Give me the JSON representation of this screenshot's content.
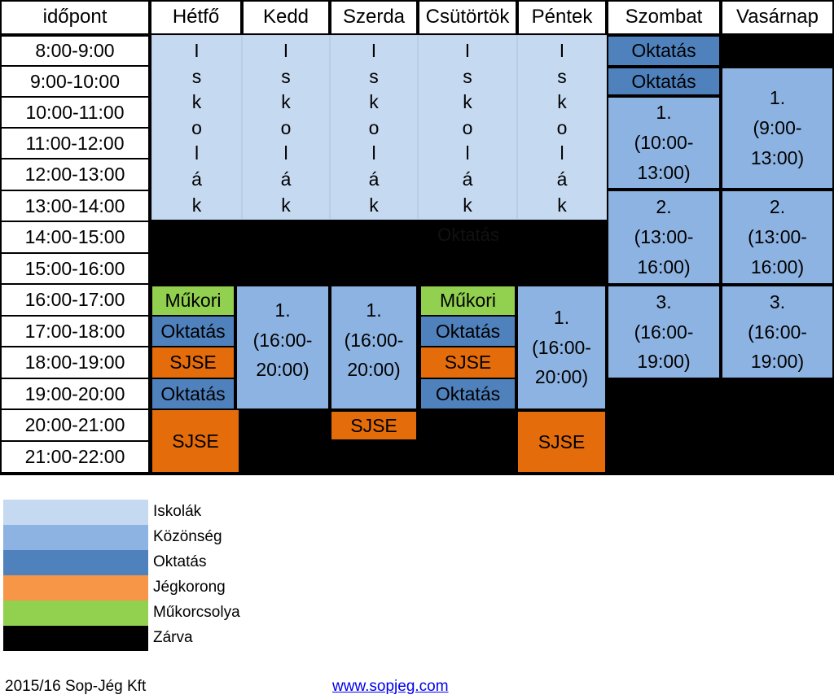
{
  "header": {
    "time": "időpont",
    "days": [
      "Hétfő",
      "Kedd",
      "Szerda",
      "Csütörtök",
      "Péntek",
      "Szombat",
      "Vasárnap"
    ]
  },
  "times": [
    "8:00-9:00",
    "9:00-10:00",
    "10:00-11:00",
    "11:00-12:00",
    "12:00-13:00",
    "13:00-14:00",
    "14:00-15:00",
    "15:00-16:00",
    "16:00-17:00",
    "17:00-18:00",
    "18:00-19:00",
    "19:00-20:00",
    "20:00-21:00",
    "21:00-22:00"
  ],
  "schedule": {
    "iskolak_letters": [
      "I",
      "s",
      "k",
      "o",
      "l",
      "á",
      "k"
    ],
    "closed_label": "Oktatás",
    "hetfo": {
      "mukori": "Műkori",
      "oktatas1": "Oktatás",
      "sjse1": "SJSE",
      "oktatas2": "Oktatás",
      "sjse2": "SJSE"
    },
    "kedd": {
      "kozonseg_num": "1.",
      "kozonseg_time1": "(16:00-",
      "kozonseg_time2": "20:00)"
    },
    "szerda": {
      "kozonseg_num": "1.",
      "kozonseg_time1": "(16:00-",
      "kozonseg_time2": "20:00)",
      "sjse": "SJSE"
    },
    "csutortok": {
      "mukori": "Műkori",
      "oktatas1": "Oktatás",
      "sjse": "SJSE",
      "oktatas2": "Oktatás"
    },
    "pentek": {
      "kozonseg_num": "1.",
      "kozonseg_time1": "(16:00-",
      "kozonseg_time2": "20:00)",
      "sjse": "SJSE"
    },
    "szombat": {
      "oktatas1": "Oktatás",
      "oktatas2": "Oktatás",
      "s1_num": "1.",
      "s1_time1": "(10:00-",
      "s1_time2": "13:00)",
      "s2_num": "2.",
      "s2_time1": "(13:00-",
      "s2_time2": "16:00)",
      "s3_num": "3.",
      "s3_time1": "(16:00-",
      "s3_time2": "19:00)"
    },
    "vasarnap": {
      "s1_num": "1.",
      "s1_time1": "(9:00-",
      "s1_time2": "13:00)",
      "s2_num": "2.",
      "s2_time1": "(13:00-",
      "s2_time2": "16:00)",
      "s3_num": "3.",
      "s3_time1": "(16:00-",
      "s3_time2": "19:00)"
    }
  },
  "legend": [
    {
      "label": "Iskolák",
      "color": "#c5d9f1"
    },
    {
      "label": "Közönség",
      "color": "#8db3e2"
    },
    {
      "label": "Oktatás",
      "color": "#4f81bd"
    },
    {
      "label": "Jégkorong",
      "color": "#f79646"
    },
    {
      "label": "Műkorcsolya",
      "color": "#92d050"
    },
    {
      "label": "Zárva",
      "color": "#000000"
    }
  ],
  "footer": {
    "company": "2015/16 Sop-Jég Kft",
    "website": "www.sopjeg.com"
  }
}
